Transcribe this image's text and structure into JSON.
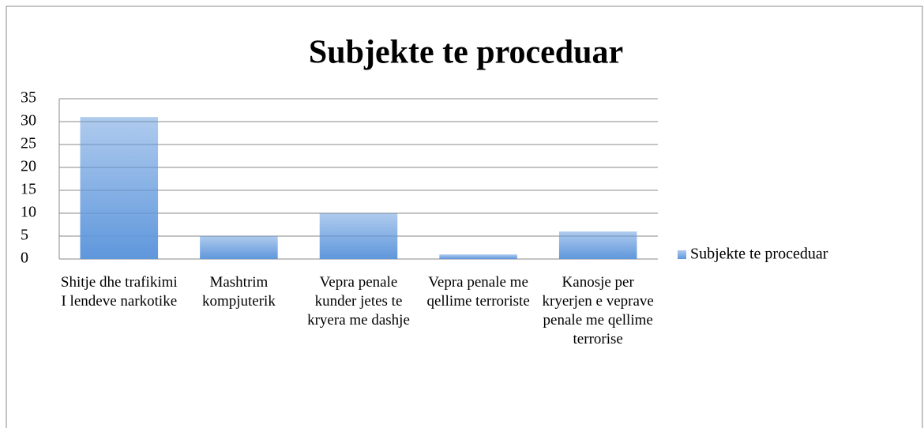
{
  "chart_data": {
    "type": "bar",
    "title": "Subjekte te proceduar",
    "categories": [
      "Shitje dhe trafikimi I lendeve narkotike",
      "Mashtrim kompjuterik",
      "Vepra penale kunder jetes te kryera me dashje",
      "Vepra penale me qellime terroriste",
      "Kanosje per kryerjen e veprave penale me qellime terrorise"
    ],
    "series": [
      {
        "name": "Subjekte te proceduar",
        "color": "#5f97dc",
        "values": [
          31,
          5,
          10,
          1,
          6
        ]
      }
    ],
    "ylim": [
      0,
      35
    ],
    "yticks": [
      0,
      5,
      10,
      15,
      20,
      25,
      30,
      35
    ],
    "grid": true,
    "legend": "right"
  }
}
